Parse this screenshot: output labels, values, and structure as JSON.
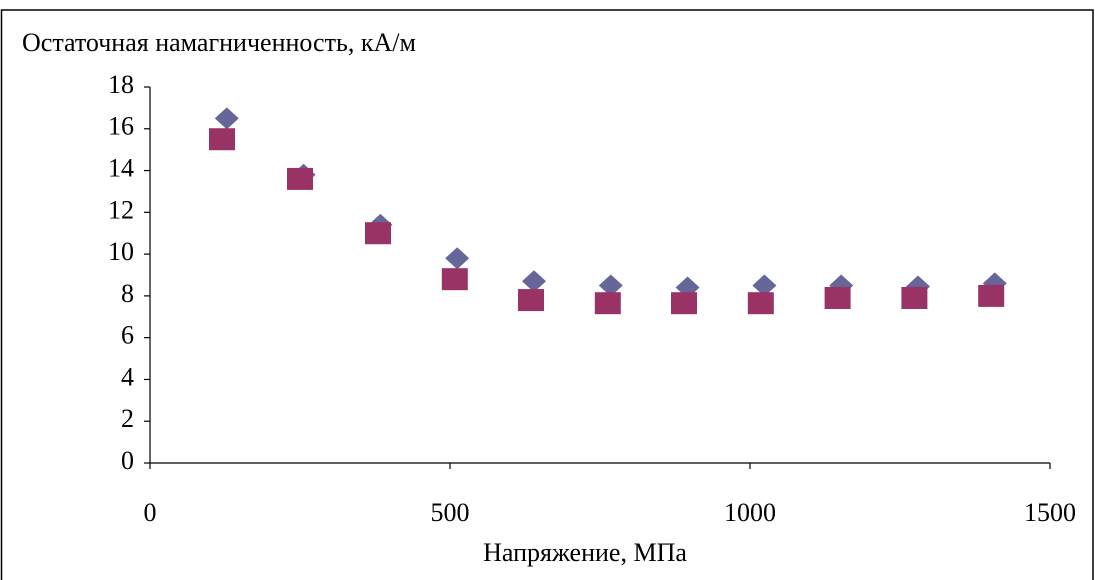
{
  "chart_data": {
    "type": "scatter",
    "y_label": "Остаточная намагниченность, кА/м",
    "x_label": "Напряжение, МПа",
    "xlim": [
      0,
      1500
    ],
    "xticks": [
      0,
      500,
      1000,
      1500
    ],
    "ylim": [
      0,
      18
    ],
    "yticks": [
      0,
      2,
      4,
      6,
      8,
      10,
      12,
      14,
      16,
      18
    ],
    "grid": false,
    "series": [
      {
        "color": "#666699",
        "marker": "diamond",
        "x": [
          128,
          256,
          384,
          512,
          640,
          768,
          896,
          1024,
          1152,
          1280,
          1408
        ],
        "values": [
          16.5,
          13.8,
          11.4,
          9.8,
          8.7,
          8.5,
          8.4,
          8.5,
          8.5,
          8.45,
          8.6
        ]
      },
      {
        "color": "#993366",
        "marker": "square",
        "x": [
          120,
          250,
          380,
          508,
          635,
          763,
          890,
          1018,
          1146,
          1274,
          1402
        ],
        "values": [
          15.5,
          13.6,
          11.0,
          8.8,
          7.8,
          7.65,
          7.65,
          7.65,
          7.9,
          7.9,
          8.0
        ]
      }
    ]
  }
}
